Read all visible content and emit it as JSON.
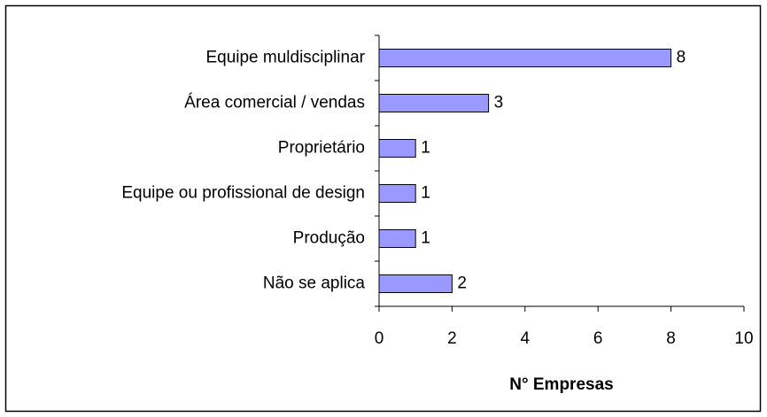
{
  "chart_data": {
    "type": "bar",
    "orientation": "horizontal",
    "categories": [
      "Equipe muldisciplinar",
      "Área comercial / vendas",
      "Proprietário",
      "Equipe ou profissional de design",
      "Produção",
      "Não se aplica"
    ],
    "values": [
      8,
      3,
      1,
      1,
      1,
      2
    ],
    "color": "#9999ff",
    "xlim": [
      0,
      10
    ],
    "xticks": [
      0,
      2,
      4,
      6,
      8,
      10
    ],
    "xlabel": "N° Empresas",
    "data_labels": true
  }
}
